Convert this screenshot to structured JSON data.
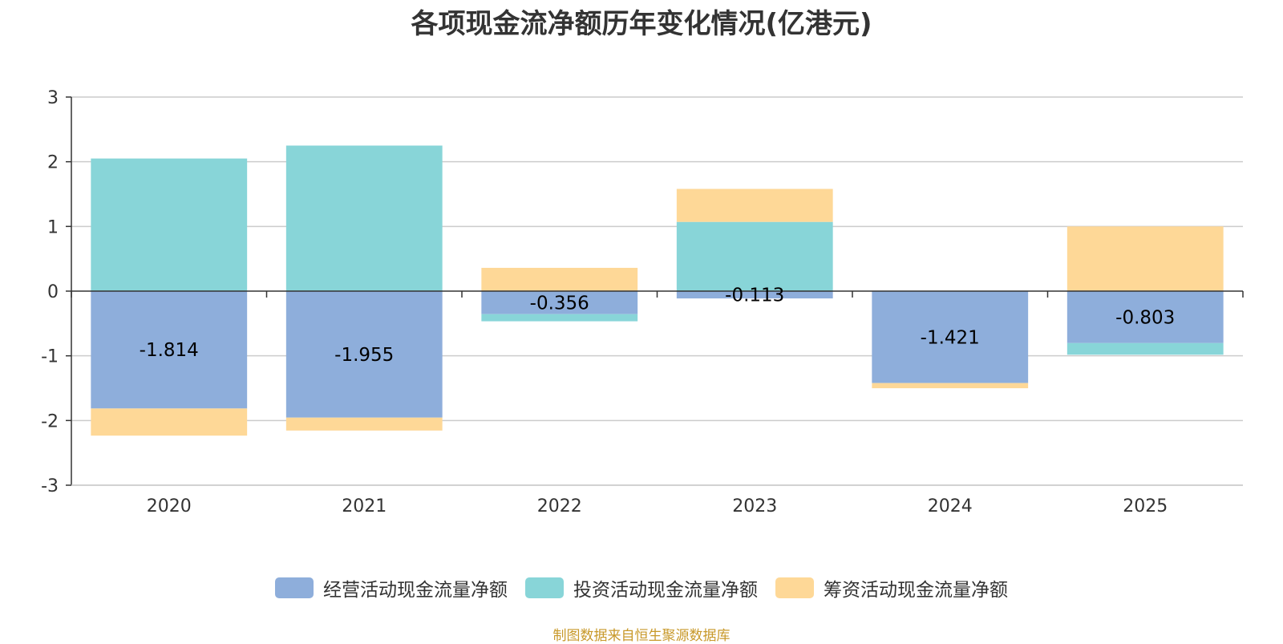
{
  "chart_data": {
    "type": "bar",
    "stacked": true,
    "title": "各项现金流净额历年变化情况(亿港元)",
    "categories": [
      "2020",
      "2021",
      "2022",
      "2023",
      "2024",
      "2025"
    ],
    "series": [
      {
        "name": "经营活动现金流量净额",
        "color": "#8eaedb",
        "values": [
          -1.814,
          -1.955,
          -0.356,
          -0.113,
          -1.421,
          -0.803
        ],
        "labels": [
          "-1.814",
          "-1.955",
          "-0.356",
          "-0.113",
          "-1.421",
          "-0.803"
        ]
      },
      {
        "name": "投资活动现金流量净额",
        "color": "#88d5d8",
        "values": [
          2.05,
          2.25,
          -0.11,
          1.07,
          0.0,
          -0.18
        ]
      },
      {
        "name": "筹资活动现金流量净额",
        "color": "#fed897",
        "values": [
          -0.42,
          -0.2,
          0.36,
          0.51,
          -0.08,
          1.0
        ]
      }
    ],
    "ylim": [
      -3,
      3
    ],
    "yticks": [
      3,
      2,
      1,
      0,
      -1,
      -2,
      -3
    ],
    "legend_position": "bottom",
    "grid": true,
    "source": "制图数据来自恒生聚源数据库"
  }
}
